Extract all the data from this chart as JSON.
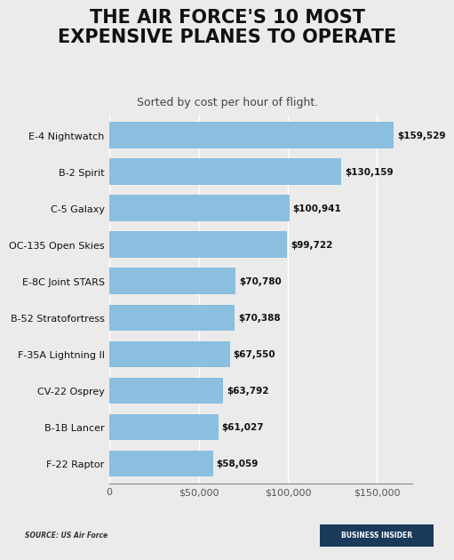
{
  "title": "THE AIR FORCE'S 10 MOST\nEXPENSIVE PLANES TO OPERATE",
  "subtitle": "Sorted by cost per hour of flight.",
  "planes": [
    "E-4 Nightwatch",
    "B-2 Spirit",
    "C-5 Galaxy",
    "OC-135 Open Skies",
    "E-8C Joint STARS",
    "B-52 Stratofortress",
    "F-35A Lightning II",
    "CV-22 Osprey",
    "B-1B Lancer",
    "F-22 Raptor"
  ],
  "values": [
    159529,
    130159,
    100941,
    99722,
    70780,
    70388,
    67550,
    63792,
    61027,
    58059
  ],
  "labels": [
    "$159,529",
    "$130,159",
    "$100,941",
    "$99,722",
    "$70,780",
    "$70,388",
    "$67,550",
    "$63,792",
    "$61,027",
    "$58,059"
  ],
  "bar_color": "#8BBFE0",
  "background_color": "#EBEBEB",
  "chart_bg": "#EBEBEB",
  "footer_bg": "#CCCCCC",
  "title_color": "#111111",
  "subtitle_color": "#444444",
  "label_color": "#111111",
  "source_text": "SOURCE: US Air Force",
  "brand_text": "BUSINESS INSIDER",
  "brand_bg": "#1a3a5c",
  "brand_text_color": "#FFFFFF",
  "xlim": [
    0,
    170000
  ],
  "xticks": [
    0,
    50000,
    100000,
    150000
  ],
  "xtick_labels": [
    "0",
    "$50,000",
    "$100,000",
    "$150,000"
  ],
  "title_fontsize": 15,
  "subtitle_fontsize": 9,
  "bar_label_fontsize": 7.5,
  "ytick_fontsize": 8,
  "xtick_fontsize": 8
}
